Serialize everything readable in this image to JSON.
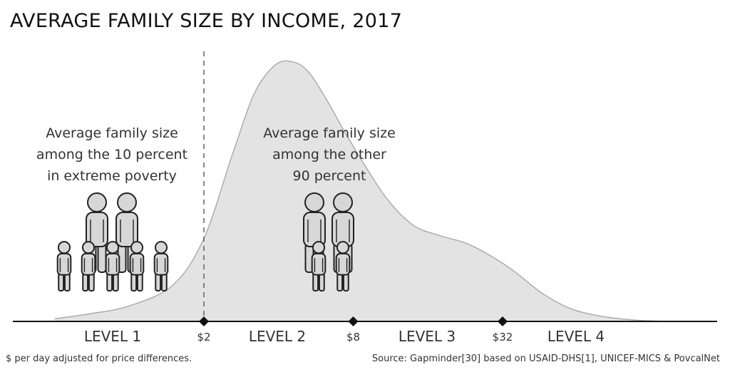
{
  "chart_data": {
    "type": "area",
    "title": "AVERAGE FAMILY SIZE BY INCOME, 2017",
    "x_scale": "log",
    "x_ticks": [
      {
        "value": 2,
        "label": "$2"
      },
      {
        "value": 8,
        "label": "$8"
      },
      {
        "value": 32,
        "label": "$32"
      }
    ],
    "levels": [
      "LEVEL 1",
      "LEVEL 2",
      "LEVEL 3",
      "LEVEL 4"
    ],
    "extreme_poverty_line": 2,
    "curve": {
      "x": [
        0.5,
        0.7,
        1,
        1.5,
        2,
        2.6,
        3.2,
        3.9,
        4.6,
        5.3,
        6.2,
        7.4,
        8.8,
        11,
        14,
        18,
        23,
        29,
        36,
        46,
        60,
        80,
        110,
        150
      ],
      "y": [
        0.01,
        0.03,
        0.06,
        0.14,
        0.32,
        0.64,
        0.88,
        0.99,
        1.0,
        0.96,
        0.86,
        0.73,
        0.61,
        0.47,
        0.37,
        0.33,
        0.3,
        0.25,
        0.19,
        0.11,
        0.05,
        0.02,
        0.005,
        0.0
      ]
    },
    "annotations": [
      {
        "lines": [
          "Average family size",
          "among the 10 percent",
          "in extreme poverty"
        ],
        "adults": 2,
        "children": 5
      },
      {
        "lines": [
          "Average family size",
          "among the other",
          "90 percent"
        ],
        "adults": 2,
        "children": 2
      }
    ],
    "footnote": "$ per day adjusted for price differences.",
    "source": "Source: Gapminder[30] based on USAID-DHS[1], UNICEF-MICS & PovcalNet"
  },
  "colors": {
    "area_fill": "#e3e3e3",
    "area_stroke": "#a9a9a9",
    "figure_fill": "#d7d7d7",
    "figure_stroke": "#222222",
    "axis": "#111111"
  }
}
